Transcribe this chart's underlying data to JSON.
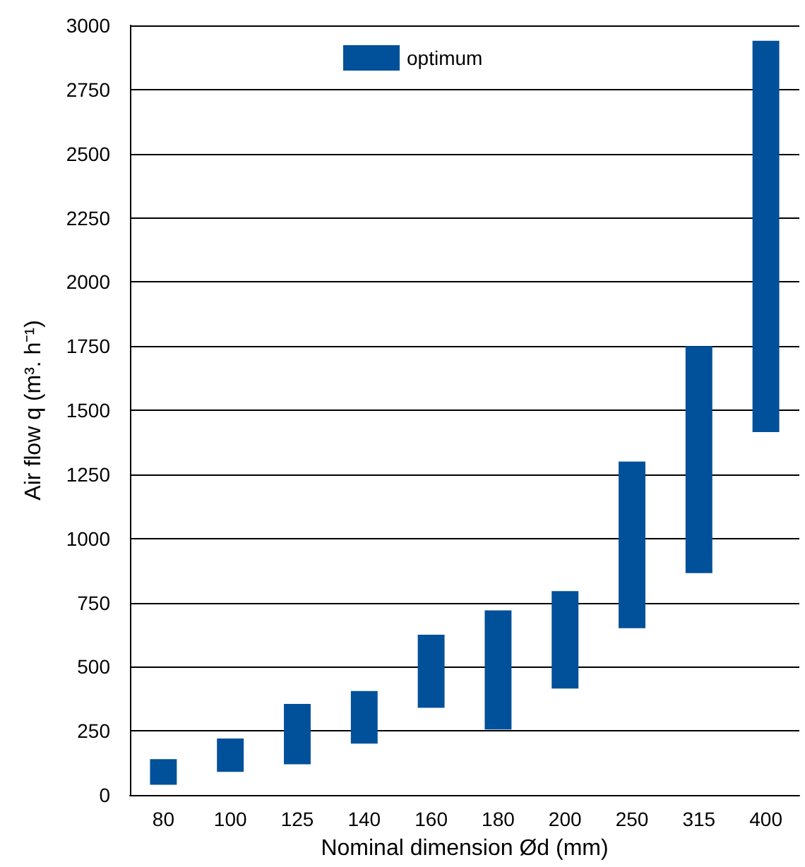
{
  "chart_data": {
    "type": "bar",
    "xlabel": "Nominal dimension Ød (mm)",
    "ylabel": "Air flow q (m³. h⁻¹)",
    "categories": [
      "80",
      "100",
      "125",
      "140",
      "160",
      "180",
      "200",
      "250",
      "315",
      "400"
    ],
    "series": [
      {
        "name": "optimum",
        "color": "#00509a",
        "base": [
          40,
          90,
          120,
          200,
          340,
          255,
          415,
          650,
          865,
          1415
        ],
        "values": [
          100,
          130,
          235,
          205,
          285,
          465,
          380,
          650,
          885,
          1525
        ]
      }
    ],
    "ylim": [
      0,
      3000
    ],
    "yticks": [
      0,
      250,
      500,
      750,
      1000,
      1250,
      1500,
      1750,
      2000,
      2250,
      2500,
      2750,
      3000
    ],
    "grid": "y",
    "legend": "top"
  }
}
